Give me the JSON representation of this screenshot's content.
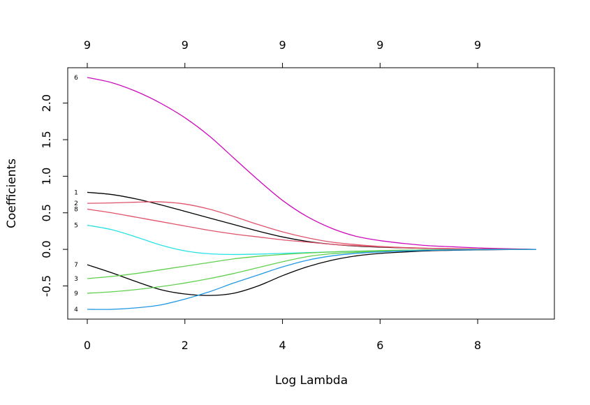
{
  "chart_data": {
    "type": "line",
    "title": "",
    "xlabel": "Log Lambda",
    "ylabel": "Coefficients",
    "xlim": [
      0,
      9.2
    ],
    "ylim": [
      -0.82,
      2.35
    ],
    "x_ticks": [
      "0",
      "2",
      "4",
      "6",
      "8"
    ],
    "x_tick_values": [
      0,
      2,
      4,
      6,
      8
    ],
    "y_ticks": [
      "-0.5",
      "0.0",
      "0.5",
      "1.0",
      "1.5",
      "2.0"
    ],
    "y_tick_values": [
      -0.5,
      0.0,
      0.5,
      1.0,
      1.5,
      2.0
    ],
    "top_axis": {
      "labels": [
        "9",
        "9",
        "9",
        "9",
        "9"
      ],
      "positions": [
        0,
        2,
        4,
        6,
        8
      ]
    },
    "grid": false,
    "legend": "none",
    "series": [
      {
        "label": "6",
        "color": "#CD0BBC",
        "x": [
          0,
          0.5,
          1,
          1.5,
          2,
          2.5,
          3,
          3.5,
          4,
          4.5,
          5,
          5.5,
          6,
          6.5,
          7,
          7.5,
          8,
          8.5,
          9.2
        ],
        "y": [
          2.35,
          2.28,
          2.16,
          2.0,
          1.8,
          1.55,
          1.25,
          0.95,
          0.67,
          0.45,
          0.29,
          0.18,
          0.12,
          0.08,
          0.05,
          0.035,
          0.02,
          0.01,
          0.0
        ]
      },
      {
        "label": "1",
        "color": "#000000",
        "x": [
          0,
          0.5,
          1,
          1.5,
          2,
          2.5,
          3,
          3.5,
          4,
          4.5,
          5,
          5.5,
          6,
          6.5,
          7,
          7.5,
          8,
          8.5,
          9.2
        ],
        "y": [
          0.78,
          0.75,
          0.69,
          0.61,
          0.52,
          0.43,
          0.34,
          0.25,
          0.17,
          0.11,
          0.07,
          0.045,
          0.03,
          0.02,
          0.012,
          0.008,
          0.005,
          0.002,
          0.0
        ]
      },
      {
        "label": "2",
        "color": "#DF536B",
        "x": [
          0,
          0.5,
          1,
          1.5,
          2,
          2.5,
          3,
          3.5,
          4,
          4.5,
          5,
          5.5,
          6,
          6.5,
          7,
          7.5,
          8,
          8.5,
          9.2
        ],
        "y": [
          0.63,
          0.635,
          0.645,
          0.65,
          0.62,
          0.55,
          0.45,
          0.34,
          0.24,
          0.16,
          0.1,
          0.065,
          0.04,
          0.025,
          0.015,
          0.01,
          0.005,
          0.002,
          0.0
        ]
      },
      {
        "label": "8",
        "color": "#DF536B",
        "x": [
          0,
          0.5,
          1,
          1.5,
          2,
          2.5,
          3,
          3.5,
          4,
          4.5,
          5,
          5.5,
          6,
          6.5,
          7,
          7.5,
          8,
          8.5,
          9.2
        ],
        "y": [
          0.55,
          0.5,
          0.44,
          0.38,
          0.32,
          0.26,
          0.21,
          0.17,
          0.13,
          0.1,
          0.07,
          0.05,
          0.035,
          0.022,
          0.014,
          0.009,
          0.005,
          0.002,
          0.0
        ]
      },
      {
        "label": "5",
        "color": "#28E2E5",
        "x": [
          0,
          0.5,
          1,
          1.5,
          2,
          2.5,
          3,
          3.5,
          4,
          4.5,
          5,
          5.5,
          6,
          6.5,
          7,
          7.5,
          8,
          8.5,
          9.2
        ],
        "y": [
          0.33,
          0.27,
          0.17,
          0.06,
          -0.02,
          -0.06,
          -0.07,
          -0.065,
          -0.055,
          -0.045,
          -0.035,
          -0.025,
          -0.018,
          -0.012,
          -0.008,
          -0.005,
          -0.003,
          -0.001,
          0.0
        ]
      },
      {
        "label": "7",
        "color": "#000000",
        "x": [
          0,
          0.5,
          1,
          1.5,
          2,
          2.5,
          3,
          3.5,
          4,
          4.5,
          5,
          5.5,
          6,
          6.5,
          7,
          7.5,
          8,
          8.5,
          9.2
        ],
        "y": [
          -0.21,
          -0.32,
          -0.44,
          -0.55,
          -0.61,
          -0.63,
          -0.6,
          -0.5,
          -0.36,
          -0.24,
          -0.15,
          -0.09,
          -0.055,
          -0.035,
          -0.02,
          -0.012,
          -0.007,
          -0.003,
          0.0
        ]
      },
      {
        "label": "3",
        "color": "#61D04F",
        "x": [
          0,
          0.5,
          1,
          1.5,
          2,
          2.5,
          3,
          3.5,
          4,
          4.5,
          5,
          5.5,
          6,
          6.5,
          7,
          7.5,
          8,
          8.5,
          9.2
        ],
        "y": [
          -0.4,
          -0.37,
          -0.33,
          -0.28,
          -0.23,
          -0.18,
          -0.13,
          -0.095,
          -0.07,
          -0.05,
          -0.035,
          -0.025,
          -0.017,
          -0.011,
          -0.007,
          -0.004,
          -0.002,
          -0.001,
          0.0
        ]
      },
      {
        "label": "9",
        "color": "#61D04F",
        "x": [
          0,
          0.5,
          1,
          1.5,
          2,
          2.5,
          3,
          3.5,
          4,
          4.5,
          5,
          5.5,
          6,
          6.5,
          7,
          7.5,
          8,
          8.5,
          9.2
        ],
        "y": [
          -0.6,
          -0.58,
          -0.55,
          -0.51,
          -0.46,
          -0.4,
          -0.33,
          -0.25,
          -0.17,
          -0.1,
          -0.06,
          -0.04,
          -0.025,
          -0.016,
          -0.01,
          -0.006,
          -0.003,
          -0.001,
          0.0
        ]
      },
      {
        "label": "4",
        "color": "#2297E6",
        "x": [
          0,
          0.5,
          1,
          1.5,
          2,
          2.5,
          3,
          3.5,
          4,
          4.5,
          5,
          5.5,
          6,
          6.5,
          7,
          7.5,
          8,
          8.5,
          9.2
        ],
        "y": [
          -0.82,
          -0.82,
          -0.8,
          -0.76,
          -0.68,
          -0.58,
          -0.46,
          -0.35,
          -0.24,
          -0.15,
          -0.09,
          -0.055,
          -0.035,
          -0.022,
          -0.013,
          -0.008,
          -0.004,
          -0.002,
          0.0
        ]
      }
    ]
  }
}
